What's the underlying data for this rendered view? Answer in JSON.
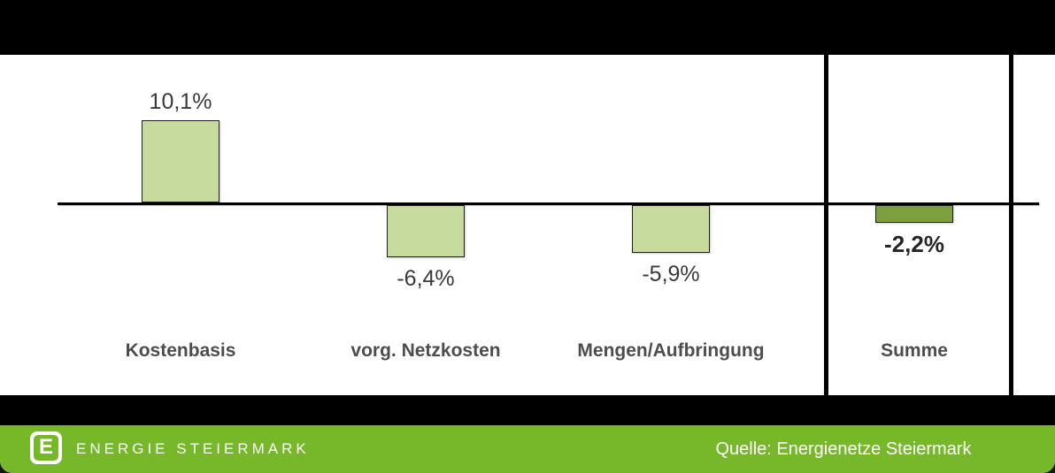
{
  "chart_data": {
    "type": "bar",
    "categories": [
      "Kostenbasis",
      "vorg. Netzkosten",
      "Mengen/Aufbringung",
      "Summe"
    ],
    "values": [
      10.1,
      -6.4,
      -5.9,
      -2.2
    ],
    "value_labels": [
      "10,1%",
      "-6,4%",
      "-5,9%",
      "-2,2%"
    ],
    "emphasized_index": 3,
    "separator_after_category_index": 2,
    "title": "",
    "xlabel": "",
    "ylabel": "",
    "ylim": [
      -8,
      12
    ],
    "grid": false,
    "legend": false,
    "colors": {
      "bar_fill": "#c7db9e",
      "bar_fill_emphasis": "#7c9f40",
      "bar_border": "#1f1f1f",
      "axis": "#000000",
      "category_text": "#4d4d4d",
      "value_text": "#3a3a3a"
    }
  },
  "footer": {
    "brand": "ENERGIE STEIERMARK",
    "logo_letter": "E",
    "source": "Quelle: Energienetze Steiermark",
    "background": "#76b82a",
    "band_color": "#000000"
  }
}
